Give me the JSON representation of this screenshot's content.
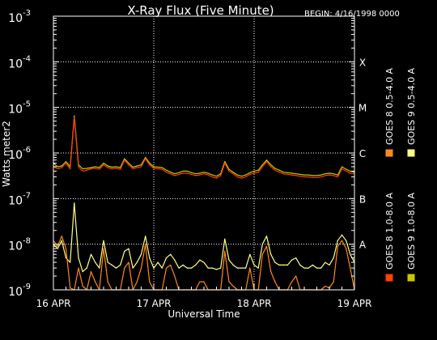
{
  "chart_data": {
    "type": "line",
    "title": "X-Ray Flux (Five Minute)",
    "begin_label": "BEGIN: 4/16/1998 0000",
    "xlabel": "Universal Time",
    "ylabel": "Watts meter2",
    "y_scale": "log",
    "ylim": [
      1e-09,
      0.001
    ],
    "y_ticks": [
      {
        "base": "10",
        "exp": "-3"
      },
      {
        "base": "10",
        "exp": "-4"
      },
      {
        "base": "10",
        "exp": "-5"
      },
      {
        "base": "10",
        "exp": "-6"
      },
      {
        "base": "10",
        "exp": "-7"
      },
      {
        "base": "10",
        "exp": "-8"
      },
      {
        "base": "10",
        "exp": "-9"
      }
    ],
    "xlim": [
      "1998-04-16T00:00",
      "1998-04-19T00:00"
    ],
    "x_ticks": [
      "16 APR",
      "17 APR",
      "18 APR",
      "19 APR"
    ],
    "flare_classes": [
      "X",
      "M",
      "C",
      "B",
      "A"
    ],
    "grid": true,
    "legend_position": "right, vertical",
    "series": [
      {
        "name": "GOES 8 1.0-8.0 A",
        "color": "#ff4000",
        "band": "long",
        "sat": "goes8",
        "hours": [
          0,
          1,
          2,
          3,
          4,
          5,
          6,
          7,
          8,
          9,
          10,
          11,
          12,
          13,
          14,
          15,
          16,
          17,
          18,
          19,
          20,
          21,
          22,
          23,
          24,
          25,
          26,
          27,
          28,
          29,
          30,
          31,
          32,
          33,
          34,
          35,
          36,
          37,
          38,
          39,
          40,
          41,
          42,
          43,
          44,
          45,
          46,
          47,
          48,
          49,
          50,
          51,
          52,
          53,
          54,
          55,
          56,
          57,
          58,
          59,
          60,
          61,
          62,
          63,
          64,
          65,
          66,
          67,
          68,
          69,
          70,
          71,
          72
        ],
        "values": [
          5e-07,
          4.5e-07,
          4.8e-07,
          6e-07,
          4.5e-07,
          6e-06,
          5e-07,
          4e-07,
          4.2e-07,
          4.5e-07,
          4.6e-07,
          4.4e-07,
          5.5e-07,
          4.8e-07,
          4.5e-07,
          4.6e-07,
          4.4e-07,
          7e-07,
          5.5e-07,
          4.5e-07,
          4.8e-07,
          5e-07,
          7.5e-07,
          5.5e-07,
          4.6e-07,
          4.5e-07,
          4.4e-07,
          3.8e-07,
          3.5e-07,
          3.2e-07,
          3.4e-07,
          3.6e-07,
          3.6e-07,
          3.4e-07,
          3.2e-07,
          3.3e-07,
          3.5e-07,
          3.3e-07,
          3e-07,
          2.8e-07,
          3.2e-07,
          6e-07,
          4e-07,
          3.5e-07,
          3e-07,
          2.8e-07,
          3e-07,
          3.4e-07,
          3.6e-07,
          3.8e-07,
          5e-07,
          6.5e-07,
          5e-07,
          4.2e-07,
          3.8e-07,
          3.5e-07,
          3.4e-07,
          3.3e-07,
          3.2e-07,
          3.1e-07,
          3e-07,
          3e-07,
          2.9e-07,
          2.9e-07,
          3e-07,
          3.2e-07,
          3.3e-07,
          3.2e-07,
          3e-07,
          4.5e-07,
          4e-07,
          3.6e-07,
          3.5e-07
        ]
      },
      {
        "name": "GOES 8 0.5-4.0 A",
        "color": "#ff8a1c",
        "band": "short",
        "sat": "goes8",
        "hours": [
          0,
          1,
          2,
          3,
          4,
          5,
          6,
          7,
          8,
          9,
          10,
          11,
          12,
          13,
          14,
          15,
          16,
          17,
          18,
          19,
          20,
          21,
          22,
          23,
          24,
          25,
          26,
          27,
          28,
          29,
          30,
          31,
          32,
          33,
          34,
          35,
          36,
          37,
          38,
          39,
          40,
          41,
          42,
          43,
          44,
          45,
          46,
          47,
          48,
          49,
          50,
          51,
          52,
          53,
          54,
          55,
          56,
          57,
          58,
          59,
          60,
          61,
          62,
          63,
          64,
          65,
          66,
          67,
          68,
          69,
          70,
          71,
          72
        ],
        "values": [
          1.2e-08,
          9e-09,
          1.5e-08,
          8e-09,
          1.1e-09,
          1e-09,
          3e-09,
          1.2e-09,
          1e-09,
          2.5e-09,
          1.5e-09,
          1e-09,
          8e-09,
          1.5e-09,
          1e-09,
          1e-09,
          1e-09,
          3e-09,
          4e-09,
          1e-09,
          1.5e-09,
          3e-09,
          1e-08,
          1.5e-09,
          1e-09,
          1e-09,
          1e-09,
          3e-09,
          3.5e-09,
          2e-09,
          1e-09,
          1e-09,
          1e-09,
          1e-09,
          1e-09,
          1.5e-09,
          1.5e-09,
          1e-09,
          1e-09,
          1e-09,
          1e-09,
          7e-09,
          1.5e-09,
          1.2e-09,
          1e-09,
          1e-09,
          1e-09,
          3e-09,
          1e-09,
          1e-09,
          6e-09,
          9e-09,
          2.5e-09,
          1.5e-09,
          1e-09,
          1e-09,
          1e-09,
          1.5e-09,
          2e-09,
          1e-09,
          1e-09,
          1e-09,
          1e-09,
          1e-09,
          1e-09,
          1.2e-09,
          1.1e-09,
          1.5e-09,
          9e-09,
          1.2e-08,
          8e-09,
          3e-09,
          1e-09
        ]
      },
      {
        "name": "GOES 9 1.0-8.0 A",
        "color": "#c8c800",
        "band": "long",
        "sat": "goes9",
        "hours": [
          0,
          1,
          2,
          3,
          4,
          5,
          6,
          7,
          8,
          9,
          10,
          11,
          12,
          13,
          14,
          15,
          16,
          17,
          18,
          19,
          20,
          21,
          22,
          23,
          24,
          25,
          26,
          27,
          28,
          29,
          30,
          31,
          32,
          33,
          34,
          35,
          36,
          37,
          38,
          39,
          40,
          41,
          42,
          43,
          44,
          45,
          46,
          47,
          48,
          49,
          50,
          51,
          52,
          53,
          54,
          55,
          56,
          57,
          58,
          59,
          60,
          61,
          62,
          63,
          64,
          65,
          66,
          67,
          68,
          69,
          70,
          71,
          72
        ],
        "values": [
          6e-07,
          5e-07,
          5.2e-07,
          6.5e-07,
          5e-07,
          6.5e-06,
          5.5e-07,
          4.5e-07,
          4.6e-07,
          4.8e-07,
          5e-07,
          4.8e-07,
          6e-07,
          5.2e-07,
          4.9e-07,
          5e-07,
          4.8e-07,
          7.5e-07,
          6e-07,
          4.9e-07,
          5.2e-07,
          5.5e-07,
          8e-07,
          6e-07,
          5e-07,
          4.9e-07,
          4.8e-07,
          4.2e-07,
          3.8e-07,
          3.5e-07,
          3.7e-07,
          4e-07,
          4e-07,
          3.7e-07,
          3.5e-07,
          3.6e-07,
          3.8e-07,
          3.6e-07,
          3.3e-07,
          3.1e-07,
          3.5e-07,
          6.5e-07,
          4.4e-07,
          3.8e-07,
          3.3e-07,
          3.1e-07,
          3.3e-07,
          3.7e-07,
          4e-07,
          4.2e-07,
          5.5e-07,
          7e-07,
          5.5e-07,
          4.6e-07,
          4.2e-07,
          3.8e-07,
          3.7e-07,
          3.6e-07,
          3.5e-07,
          3.4e-07,
          3.3e-07,
          3.3e-07,
          3.2e-07,
          3.2e-07,
          3.3e-07,
          3.5e-07,
          3.6e-07,
          3.5e-07,
          3.3e-07,
          5e-07,
          4.4e-07,
          4e-07,
          3.8e-07
        ]
      },
      {
        "name": "GOES 9 0.5-4.0 A",
        "color": "#ffff80",
        "band": "short",
        "sat": "goes9",
        "hours": [
          0,
          1,
          2,
          3,
          4,
          5,
          6,
          7,
          8,
          9,
          10,
          11,
          12,
          13,
          14,
          15,
          16,
          17,
          18,
          19,
          20,
          21,
          22,
          23,
          24,
          25,
          26,
          27,
          28,
          29,
          30,
          31,
          32,
          33,
          34,
          35,
          36,
          37,
          38,
          39,
          40,
          41,
          42,
          43,
          44,
          45,
          46,
          47,
          48,
          49,
          50,
          51,
          52,
          53,
          54,
          55,
          56,
          57,
          58,
          59,
          60,
          61,
          62,
          63,
          64,
          65,
          66,
          67,
          68,
          69,
          70,
          71,
          72
        ],
        "values": [
          1e-08,
          8e-09,
          1.2e-08,
          5e-09,
          4e-09,
          8e-08,
          5e-09,
          2.5e-09,
          3e-09,
          6e-09,
          4e-09,
          3e-09,
          1.2e-08,
          4e-09,
          3.5e-09,
          3e-09,
          3.5e-09,
          7e-09,
          8e-09,
          3e-09,
          4e-09,
          6e-09,
          1.5e-08,
          5e-09,
          3e-09,
          4e-09,
          3e-09,
          5e-09,
          6e-09,
          4.5e-09,
          3e-09,
          3.5e-09,
          3e-09,
          3e-09,
          3.5e-09,
          4.5e-09,
          4e-09,
          3e-09,
          3e-09,
          2.8e-09,
          3e-09,
          1.3e-08,
          4.5e-09,
          3.5e-09,
          3e-09,
          3e-09,
          3e-09,
          6e-09,
          3.5e-09,
          3e-09,
          1e-08,
          1.5e-08,
          6e-09,
          4e-09,
          3.5e-09,
          3.5e-09,
          3.5e-09,
          4.5e-09,
          5e-09,
          3.5e-09,
          3e-09,
          3e-09,
          3.5e-09,
          3e-09,
          3e-09,
          4e-09,
          3.5e-09,
          5e-09,
          1.2e-08,
          1.6e-08,
          1.2e-08,
          6e-09,
          4e-09
        ]
      }
    ]
  }
}
